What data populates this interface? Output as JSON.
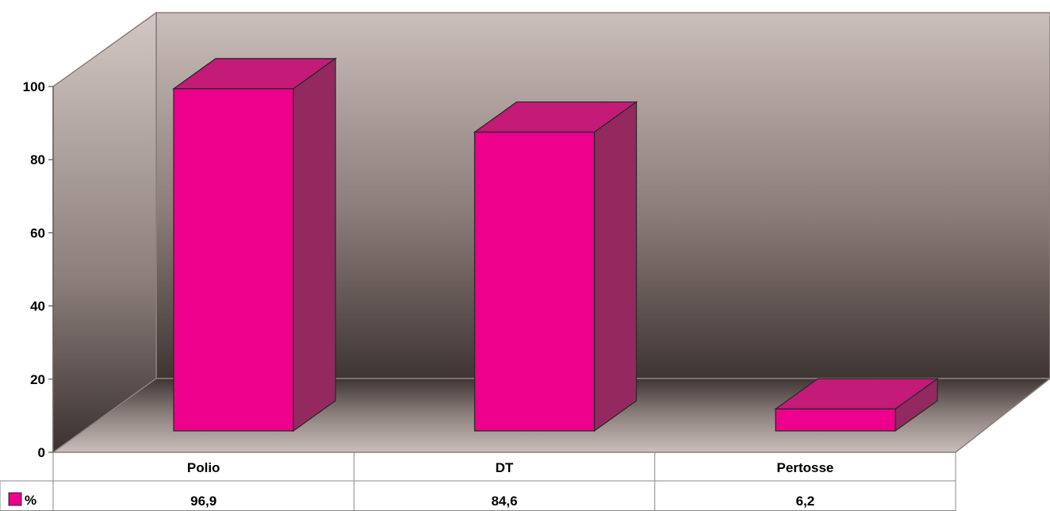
{
  "chart_data": {
    "type": "bar",
    "title": "",
    "xlabel": "",
    "ylabel": "",
    "ylim": [
      0,
      100
    ],
    "yticks": [
      0,
      20,
      40,
      60,
      80,
      100
    ],
    "categories": [
      "Polio",
      "DT",
      "Pertosse"
    ],
    "series": [
      {
        "name": "%",
        "values": [
          96.9,
          84.6,
          6.2
        ],
        "labels": [
          "96,9",
          "84,6",
          "6,2"
        ]
      }
    ],
    "data_table": true,
    "grid": false,
    "legend": "in data table",
    "colors": {
      "bar_front": "#ec008c",
      "bar_top": "#c41a78",
      "bar_side": "#93295f",
      "wall_top": "#cbbfbb",
      "wall_bottom": "#3f3533"
    }
  }
}
